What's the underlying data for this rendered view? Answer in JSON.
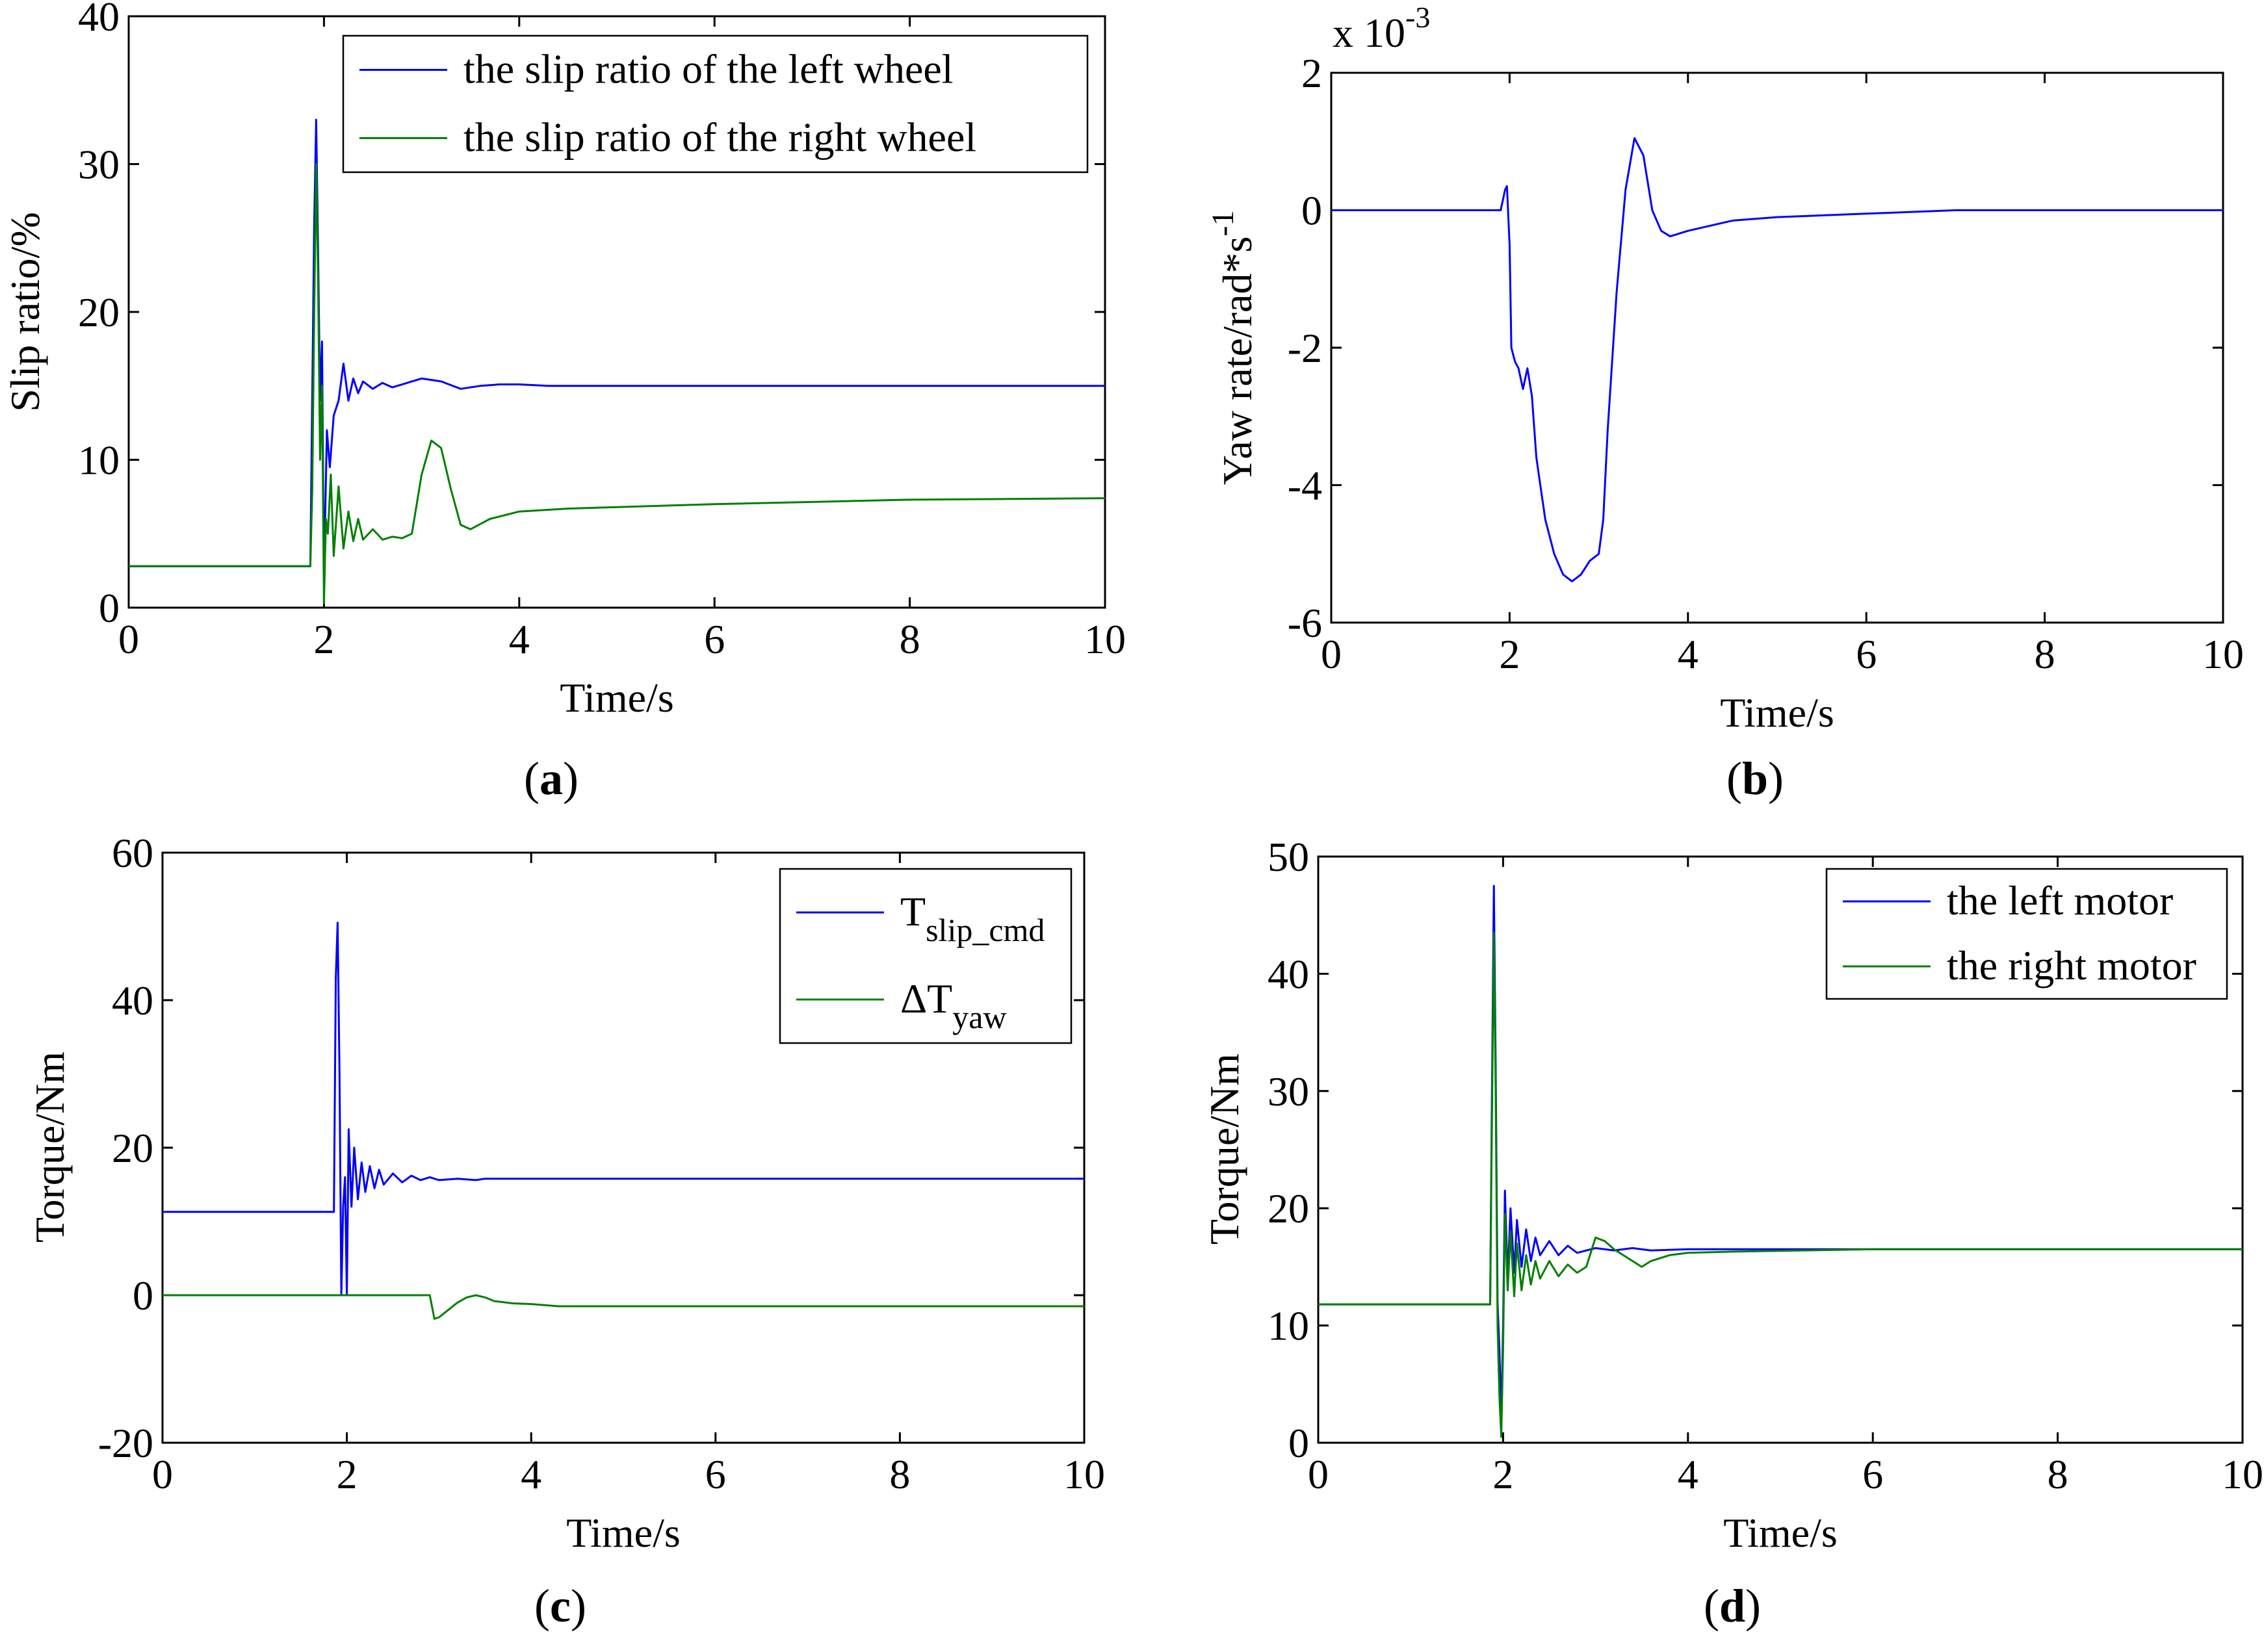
{
  "colors": {
    "series1": "#0000ff",
    "series2": "#008000",
    "axis": "#000000",
    "background": "#ffffff"
  },
  "chart_data": [
    {
      "id": "a",
      "type": "line",
      "caption": {
        "open": "(",
        "letter": "a",
        "close": ")"
      },
      "xlabel": "Time/s",
      "ylabel": "Slip ratio/%",
      "xlim": [
        0,
        10
      ],
      "ylim": [
        0,
        40
      ],
      "xticks": [
        "0",
        "2",
        "4",
        "6",
        "8",
        "10"
      ],
      "yticks": [
        "0",
        "10",
        "20",
        "30",
        "40"
      ],
      "legend_position": "top-right",
      "series": [
        {
          "name": "the slip ratio of the left wheel",
          "color": "#0000ff",
          "x": [
            0,
            1.86,
            1.87,
            1.9,
            1.92,
            1.94,
            1.96,
            1.98,
            2.0,
            2.03,
            2.06,
            2.1,
            2.15,
            2.2,
            2.25,
            2.3,
            2.35,
            2.4,
            2.5,
            2.6,
            2.7,
            2.8,
            3.0,
            3.2,
            3.4,
            3.6,
            3.8,
            4.0,
            4.3,
            6,
            8,
            10
          ],
          "values": [
            2.8,
            2.8,
            8.5,
            26,
            33,
            24,
            14,
            18,
            2,
            12,
            9.5,
            13,
            14,
            16.5,
            14,
            15.5,
            14.5,
            15.3,
            14.8,
            15.2,
            14.9,
            15.1,
            15.5,
            15.3,
            14.8,
            15.0,
            15.1,
            15.1,
            15.0,
            15.0,
            15.0,
            15.0
          ]
        },
        {
          "name": "the slip ratio of the right wheel",
          "color": "#008000",
          "x": [
            0,
            1.86,
            1.88,
            1.9,
            1.92,
            1.94,
            1.96,
            1.98,
            2.0,
            2.02,
            2.04,
            2.07,
            2.1,
            2.15,
            2.2,
            2.25,
            2.3,
            2.35,
            2.4,
            2.5,
            2.6,
            2.7,
            2.8,
            2.9,
            3.0,
            3.1,
            3.2,
            3.3,
            3.4,
            3.5,
            3.7,
            4.0,
            4.5,
            6,
            8,
            10
          ],
          "values": [
            2.8,
            2.8,
            8,
            20,
            30,
            22,
            10,
            15,
            0.3,
            6,
            5,
            9,
            3.5,
            8.2,
            4,
            6.5,
            4.5,
            6,
            4.6,
            5.3,
            4.6,
            4.8,
            4.7,
            5,
            9,
            11.3,
            10.8,
            8,
            5.6,
            5.3,
            6,
            6.5,
            6.7,
            7.0,
            7.3,
            7.4
          ]
        }
      ]
    },
    {
      "id": "b",
      "type": "line",
      "caption": {
        "open": "(",
        "letter": "b",
        "close": ")"
      },
      "xlabel": "Time/s",
      "ylabel_main": "Yaw rate/rad*s",
      "ylabel_sup": "-1",
      "multiplier_base": "x 10",
      "multiplier_exp": "-3",
      "xlim": [
        0,
        10
      ],
      "ylim": [
        -6,
        2
      ],
      "xticks": [
        "0",
        "2",
        "4",
        "6",
        "8",
        "10"
      ],
      "yticks": [
        "-6",
        "-4",
        "-2",
        "0",
        "2"
      ],
      "series": [
        {
          "name": "yaw rate",
          "color": "#0000ff",
          "x": [
            0,
            1.9,
            1.95,
            1.97,
            2.0,
            2.02,
            2.06,
            2.1,
            2.15,
            2.2,
            2.25,
            2.3,
            2.4,
            2.5,
            2.6,
            2.7,
            2.8,
            2.9,
            3.0,
            3.05,
            3.1,
            3.2,
            3.3,
            3.4,
            3.5,
            3.6,
            3.7,
            3.8,
            4.0,
            4.5,
            5.0,
            6.0,
            7.0,
            10
          ],
          "values": [
            0,
            0,
            0.3,
            0.35,
            -0.5,
            -2.0,
            -2.2,
            -2.3,
            -2.6,
            -2.3,
            -2.7,
            -3.6,
            -4.5,
            -5.0,
            -5.3,
            -5.4,
            -5.3,
            -5.1,
            -5.0,
            -4.5,
            -3.2,
            -1.2,
            0.3,
            1.05,
            0.8,
            0.0,
            -0.3,
            -0.38,
            -0.3,
            -0.15,
            -0.1,
            -0.05,
            0.0,
            0.0
          ]
        }
      ]
    },
    {
      "id": "c",
      "type": "line",
      "caption": {
        "open": "(",
        "letter": "c",
        "close": ")"
      },
      "xlabel": "Time/s",
      "ylabel": "Torque/Nm",
      "xlim": [
        0,
        10
      ],
      "ylim": [
        -20,
        60
      ],
      "xticks": [
        "0",
        "2",
        "4",
        "6",
        "8",
        "10"
      ],
      "yticks": [
        "-20",
        "0",
        "20",
        "40",
        "60"
      ],
      "legend_position": "top-right",
      "series": [
        {
          "name": "T",
          "subscript": "slip_cmd",
          "color": "#0000ff",
          "x": [
            0,
            1.86,
            1.88,
            1.9,
            1.92,
            1.94,
            1.96,
            1.98,
            2.0,
            2.02,
            2.05,
            2.08,
            2.12,
            2.16,
            2.2,
            2.25,
            2.3,
            2.35,
            2.4,
            2.5,
            2.6,
            2.7,
            2.8,
            2.9,
            3.0,
            3.2,
            3.4,
            3.5,
            6,
            8,
            10
          ],
          "values": [
            11.3,
            11.3,
            43,
            50.5,
            30,
            0,
            12,
            16,
            0,
            22.5,
            12,
            20,
            13,
            18,
            14,
            17.5,
            14.5,
            17,
            15,
            16.5,
            15.3,
            16.2,
            15.6,
            16,
            15.6,
            15.8,
            15.6,
            15.8,
            15.8,
            15.8,
            15.8
          ]
        },
        {
          "name": "ΔT",
          "subscript": "yaw",
          "color": "#008000",
          "x": [
            0,
            2.9,
            2.95,
            3.0,
            3.1,
            3.2,
            3.3,
            3.4,
            3.5,
            3.6,
            3.8,
            4.0,
            4.3,
            6,
            8,
            10
          ],
          "values": [
            0,
            0,
            -3.2,
            -3.0,
            -2.0,
            -1.0,
            -0.3,
            0.0,
            -0.3,
            -0.8,
            -1.1,
            -1.2,
            -1.5,
            -1.5,
            -1.5,
            -1.5
          ]
        }
      ]
    },
    {
      "id": "d",
      "type": "line",
      "caption": {
        "open": "(",
        "letter": "d",
        "close": ")"
      },
      "xlabel": "Time/s",
      "ylabel": "Torque/Nm",
      "xlim": [
        0,
        10
      ],
      "ylim": [
        0,
        50
      ],
      "xticks": [
        "0",
        "2",
        "4",
        "6",
        "8",
        "10"
      ],
      "yticks": [
        "0",
        "10",
        "20",
        "30",
        "40",
        "50"
      ],
      "legend_position": "top-right",
      "series": [
        {
          "name": "the left motor",
          "color": "#0000ff",
          "x": [
            0,
            1.86,
            1.88,
            1.9,
            1.92,
            1.94,
            1.96,
            1.98,
            2.0,
            2.02,
            2.05,
            2.08,
            2.12,
            2.15,
            2.2,
            2.25,
            2.3,
            2.35,
            2.4,
            2.5,
            2.6,
            2.7,
            2.8,
            3.0,
            3.2,
            3.4,
            3.6,
            4.0,
            5.0,
            6,
            8,
            10
          ],
          "values": [
            11.8,
            11.8,
            30,
            47.5,
            32,
            12,
            8,
            2,
            10,
            21.5,
            14,
            20,
            14.5,
            19,
            15,
            18.2,
            15.5,
            17.5,
            16,
            17.2,
            16,
            16.8,
            16.2,
            16.6,
            16.4,
            16.6,
            16.4,
            16.5,
            16.5,
            16.5,
            16.5,
            16.5
          ]
        },
        {
          "name": "the right motor",
          "color": "#008000",
          "x": [
            0,
            1.86,
            1.88,
            1.9,
            1.92,
            1.94,
            1.96,
            1.98,
            2.0,
            2.02,
            2.05,
            2.08,
            2.12,
            2.15,
            2.2,
            2.25,
            2.3,
            2.35,
            2.4,
            2.5,
            2.6,
            2.7,
            2.8,
            2.9,
            3.0,
            3.1,
            3.2,
            3.3,
            3.4,
            3.5,
            3.6,
            3.8,
            4.0,
            4.5,
            6,
            8,
            10
          ],
          "values": [
            11.8,
            11.8,
            28,
            43.5,
            30,
            10,
            4,
            0.5,
            8,
            19.5,
            13,
            18,
            12.5,
            17,
            13,
            16,
            13.5,
            15.5,
            14,
            15.5,
            14.2,
            15.2,
            14.5,
            15,
            17.5,
            17.2,
            16.5,
            16,
            15.5,
            15,
            15.5,
            16,
            16.2,
            16.3,
            16.5,
            16.5,
            16.5
          ]
        }
      ]
    }
  ]
}
